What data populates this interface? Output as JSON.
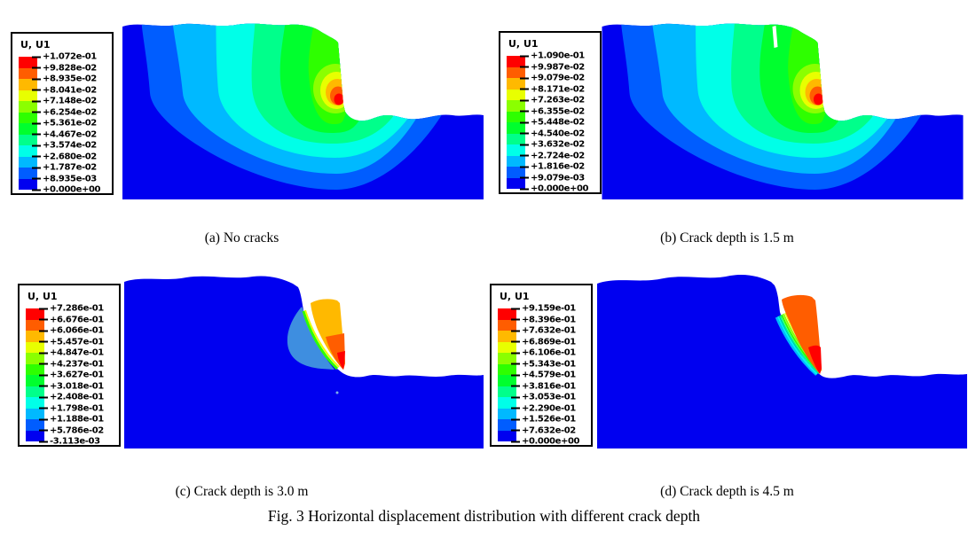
{
  "figure_caption": "Fig. 3 Horizontal displacement distribution with different crack depth",
  "legend_palette": [
    "#ff0000",
    "#ff5d00",
    "#ffb900",
    "#e8ff00",
    "#8bff00",
    "#2eff00",
    "#00ff2e",
    "#00ff8b",
    "#00ffe8",
    "#00b9ff",
    "#005dff",
    "#0000f0"
  ],
  "panels": [
    {
      "caption": "(a) No cracks",
      "legend": {
        "title": "U, U1",
        "values": [
          "+1.072e-01",
          "+9.828e-02",
          "+8.935e-02",
          "+8.041e-02",
          "+7.148e-02",
          "+6.254e-02",
          "+5.361e-02",
          "+4.467e-02",
          "+3.574e-02",
          "+2.680e-02",
          "+1.787e-02",
          "+8.935e-03",
          "+0.000e+00"
        ]
      }
    },
    {
      "caption": "(b) Crack depth is 1.5 m",
      "legend": {
        "title": "U, U1",
        "values": [
          "+1.090e-01",
          "+9.987e-02",
          "+9.079e-02",
          "+8.171e-02",
          "+7.263e-02",
          "+6.355e-02",
          "+5.448e-02",
          "+4.540e-02",
          "+3.632e-02",
          "+2.724e-02",
          "+1.816e-02",
          "+9.079e-03",
          "+0.000e+00"
        ]
      }
    },
    {
      "caption": "(c) Crack depth is 3.0 m",
      "legend": {
        "title": "U, U1",
        "values": [
          "+7.286e-01",
          "+6.676e-01",
          "+6.066e-01",
          "+5.457e-01",
          "+4.847e-01",
          "+4.237e-01",
          "+3.627e-01",
          "+3.018e-01",
          "+2.408e-01",
          "+1.798e-01",
          "+1.188e-01",
          "+5.786e-02",
          "-3.113e-03"
        ]
      }
    },
    {
      "caption": "(d) Crack depth is 4.5 m",
      "legend": {
        "title": "U, U1",
        "values": [
          "+9.159e-01",
          "+8.396e-01",
          "+7.632e-01",
          "+6.869e-01",
          "+6.106e-01",
          "+5.343e-01",
          "+4.579e-01",
          "+3.816e-01",
          "+3.053e-01",
          "+2.290e-01",
          "+1.526e-01",
          "+7.632e-02",
          "+0.000e+00"
        ]
      }
    }
  ],
  "chart_data": [
    {
      "type": "contour",
      "title": "(a) No cracks",
      "variable": "U, U1 (horizontal displacement)",
      "levels": [
        0.1072,
        0.09828,
        0.08935,
        0.08041,
        0.07148,
        0.06254,
        0.05361,
        0.04467,
        0.03574,
        0.0268,
        0.01787,
        0.008935,
        0.0
      ],
      "max": 0.1072,
      "min": 0.0,
      "legend_position": "left",
      "notes": "Nested rainbow contour bands over a slope cross-section; maximum at mid-height of slope face"
    },
    {
      "type": "contour",
      "title": "(b) Crack depth is 1.5 m",
      "variable": "U, U1 (horizontal displacement)",
      "levels": [
        0.109,
        0.09987,
        0.09079,
        0.08171,
        0.07263,
        0.06355,
        0.05448,
        0.0454,
        0.03632,
        0.02724,
        0.01816,
        0.009079,
        0.0
      ],
      "max": 0.109,
      "min": 0.0,
      "legend_position": "left",
      "notes": "Same banded pattern as (a) with a thin crack notch at the slope crest"
    },
    {
      "type": "contour",
      "title": "(c) Crack depth is 3.0 m",
      "variable": "U, U1 (horizontal displacement)",
      "levels": [
        0.7286,
        0.6676,
        0.6066,
        0.5457,
        0.4847,
        0.4237,
        0.3627,
        0.3018,
        0.2408,
        0.1798,
        0.1188,
        0.05786,
        -0.003113
      ],
      "max": 0.7286,
      "min": -0.003113,
      "legend_position": "left",
      "notes": "Body nearly all at minimum (blue); detached orange/red sliding block at slope face separated by crack and slip surface"
    },
    {
      "type": "contour",
      "title": "(d) Crack depth is 4.5 m",
      "variable": "U, U1 (horizontal displacement)",
      "levels": [
        0.9159,
        0.8396,
        0.7632,
        0.6869,
        0.6106,
        0.5343,
        0.4579,
        0.3816,
        0.3053,
        0.229,
        0.1526,
        0.07632,
        0.0
      ],
      "max": 0.9159,
      "min": 0.0,
      "legend_position": "left",
      "notes": "Body all blue; larger vermilion/red sliding block with thin rainbow slip band along failure surface"
    }
  ]
}
